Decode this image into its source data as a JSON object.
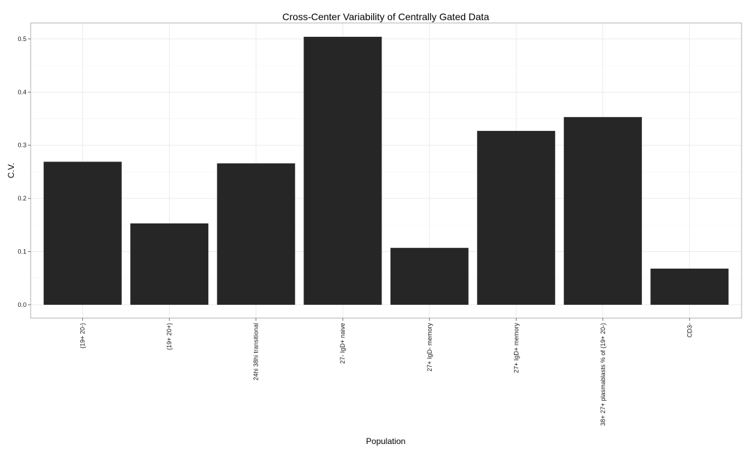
{
  "chart_data": {
    "type": "bar",
    "title": "Cross-Center Variability of Centrally Gated Data",
    "xlabel": "Population",
    "ylabel": "C.V.",
    "categories": [
      "(19+ 20-)",
      "(19+ 20+)",
      "24hi 38hi transitional",
      "27- IgD+ naive",
      "27+ IgD- memory",
      "27+ IgD+ memory",
      "38+ 27+ plasmablasts  % of (19+ 20-)",
      "CD3-"
    ],
    "values": [
      0.269,
      0.153,
      0.266,
      0.504,
      0.107,
      0.327,
      0.353,
      0.068
    ],
    "ylim": [
      -0.025,
      0.53
    ],
    "yticks": [
      0.0,
      0.1,
      0.2,
      0.3,
      0.4,
      0.5
    ],
    "ytick_labels": [
      "0.0",
      "0.1",
      "0.2",
      "0.3",
      "0.4",
      "0.5"
    ],
    "bar_color": "#262626",
    "grid": true,
    "legend": "none"
  }
}
